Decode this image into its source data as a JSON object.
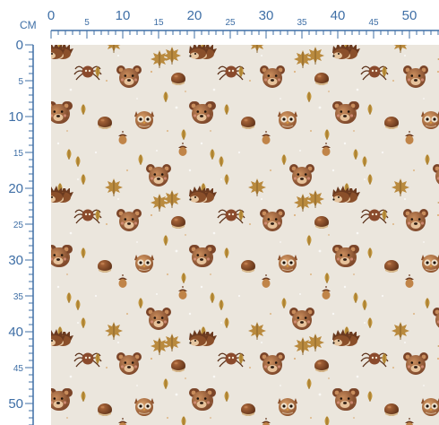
{
  "ruler": {
    "unit_label": "CM",
    "top_ticks": [
      "0",
      "5",
      "10",
      "15",
      "20",
      "25",
      "30",
      "35",
      "40",
      "45",
      "50"
    ],
    "left_ticks": [
      "0",
      "5",
      "10",
      "15",
      "20",
      "25",
      "30",
      "35",
      "40",
      "45",
      "50"
    ]
  },
  "fabric": {
    "background_color": "#ebe6dd",
    "motifs": [
      "bear-face",
      "owl-face",
      "chestnut",
      "spider",
      "hedgehog",
      "autumn-leaf",
      "acorn"
    ]
  }
}
